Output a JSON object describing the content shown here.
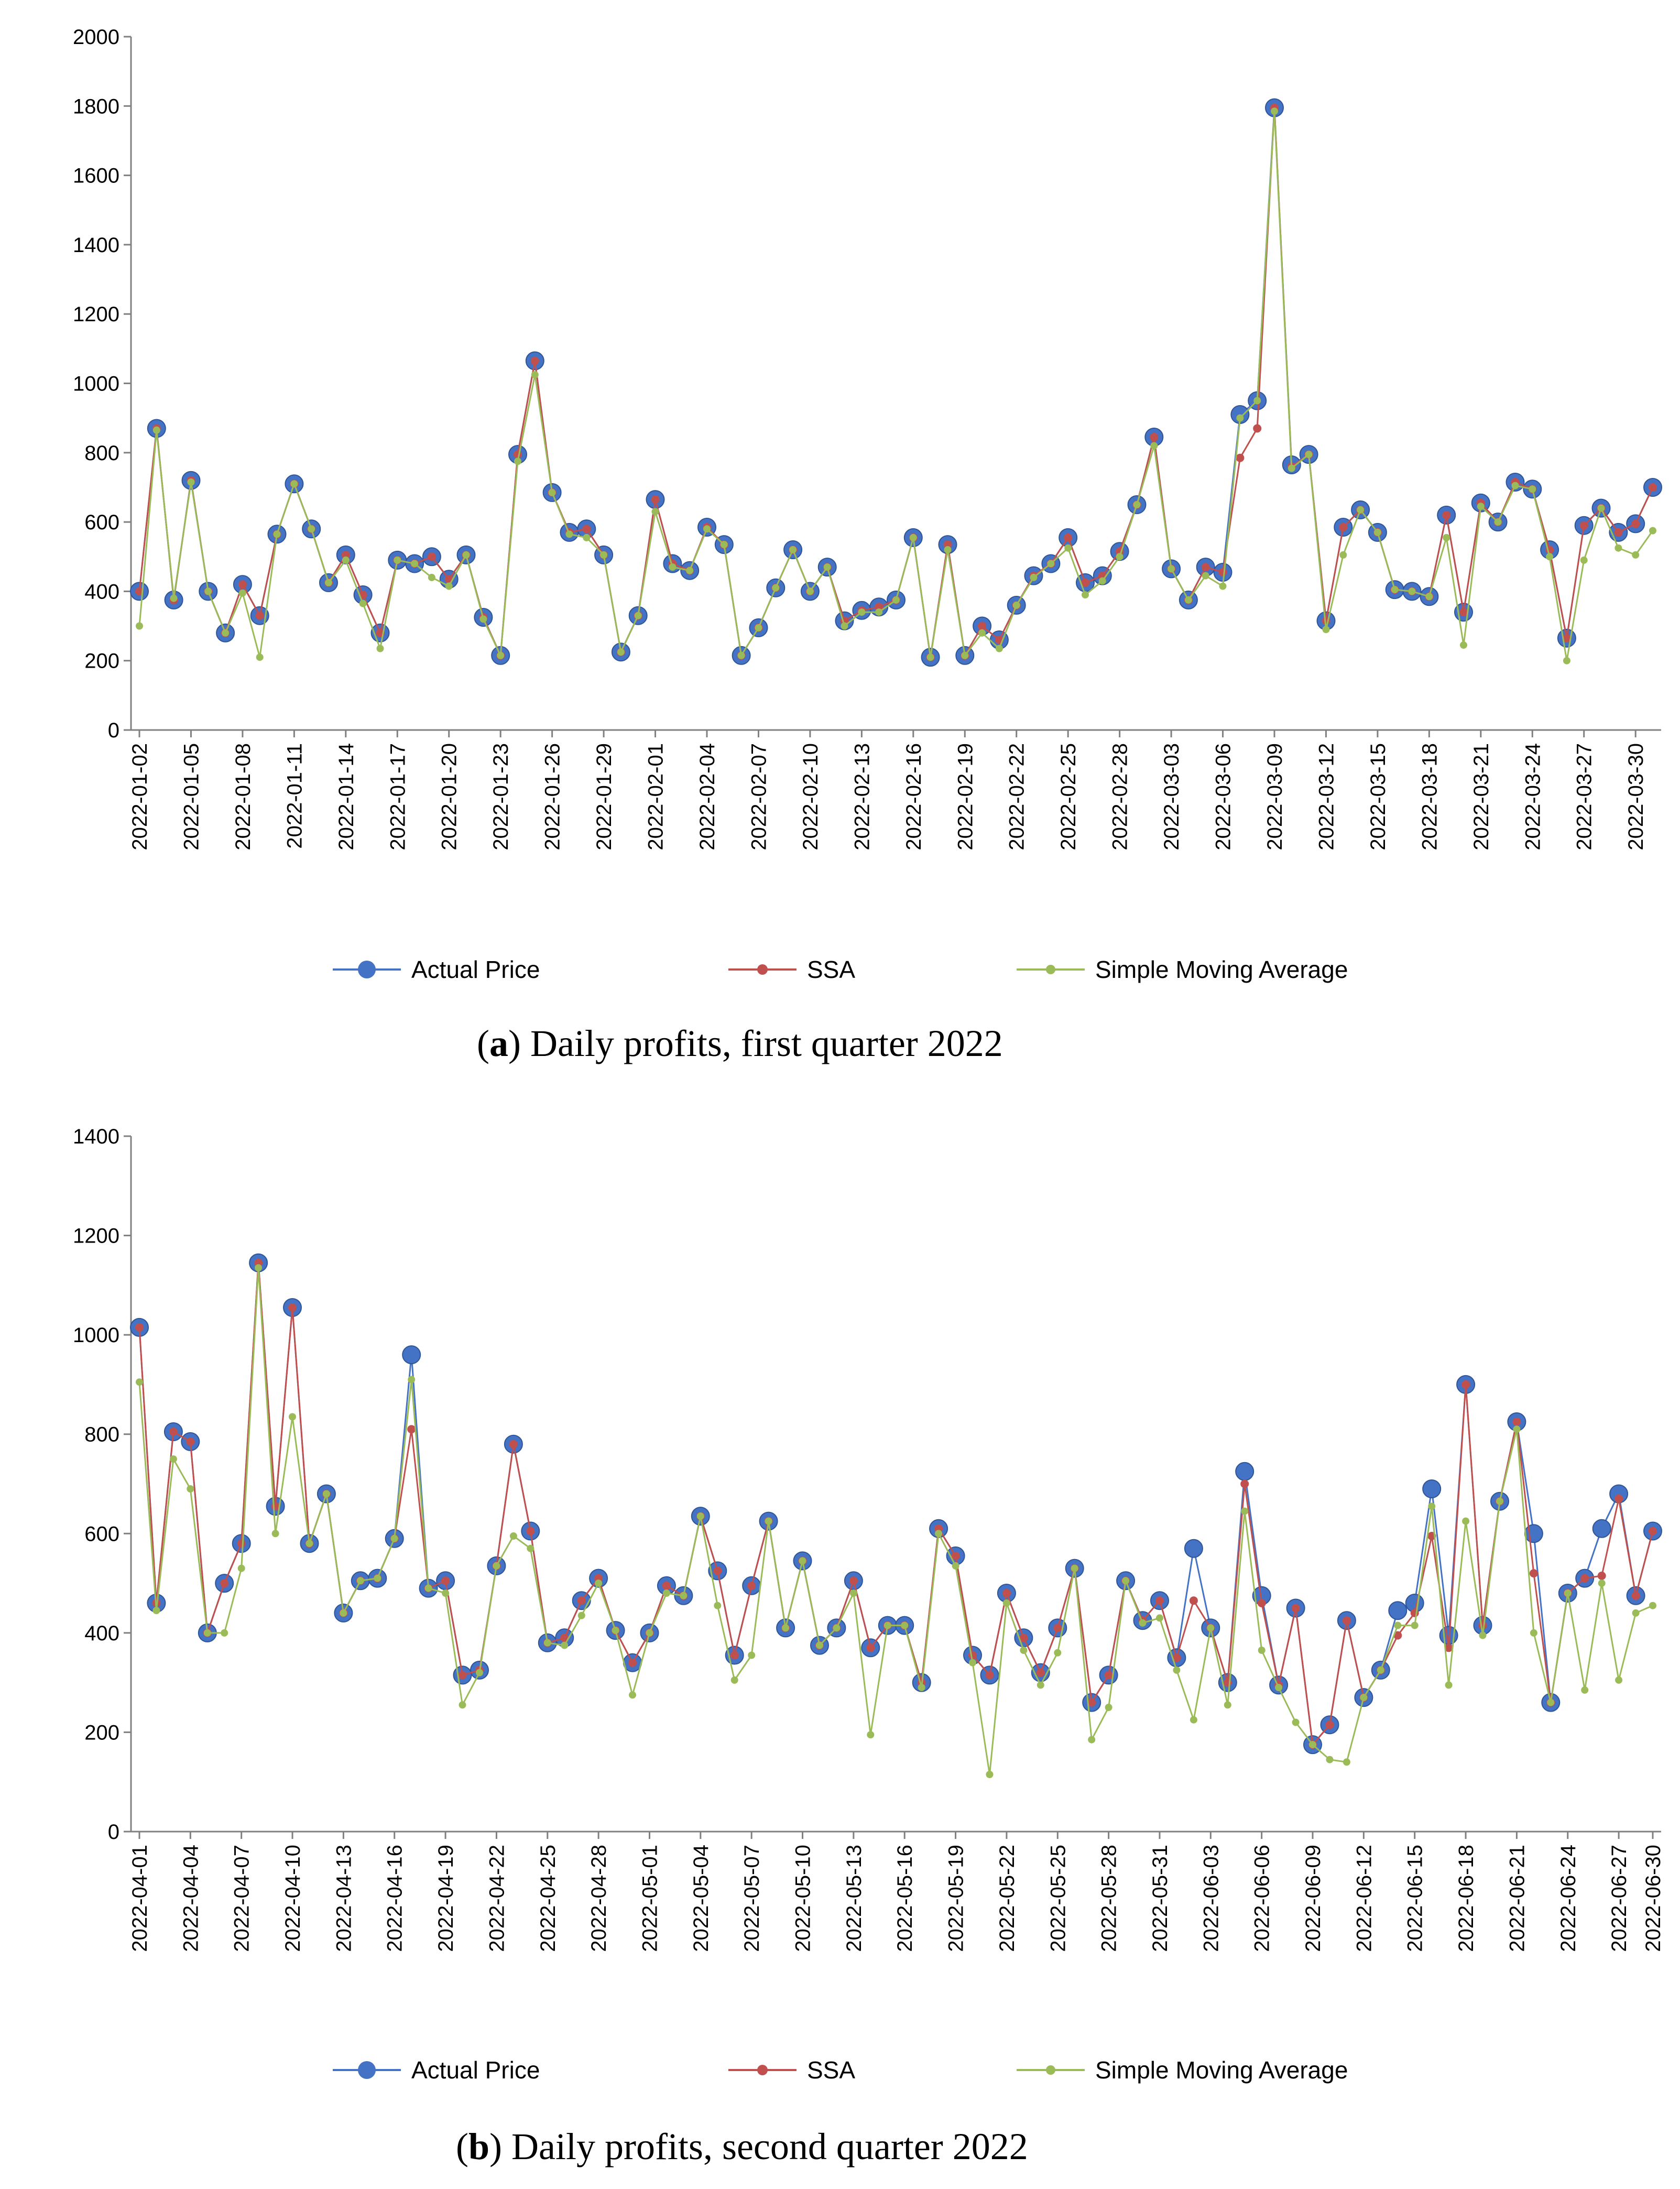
{
  "chart_data": [
    {
      "type": "line",
      "caption_prefix": "(",
      "caption_letter": "a",
      "caption_rest": ") Daily profits, first quarter 2022",
      "ylim": [
        0,
        2000
      ],
      "yticks": [
        "0",
        "200",
        "400",
        "600",
        "800",
        "1000",
        "1200",
        "1400",
        "1600",
        "1800",
        "2000"
      ],
      "ytick_values": [
        0,
        200,
        400,
        600,
        800,
        1000,
        1200,
        1400,
        1600,
        1800,
        2000
      ],
      "x_tick_labels": [
        "2022-01-02",
        "2022-01-05",
        "2022-01-08",
        "2022-01-11",
        "2022-01-14",
        "2022-01-17",
        "2022-01-20",
        "2022-01-23",
        "2022-01-26",
        "2022-01-29",
        "2022-02-01",
        "2022-02-04",
        "2022-02-07",
        "2022-02-10",
        "2022-02-13",
        "2022-02-16",
        "2022-02-19",
        "2022-02-22",
        "2022-02-25",
        "2022-02-28",
        "2022-03-03",
        "2022-03-06",
        "2022-03-09",
        "2022-03-12",
        "2022-03-15",
        "2022-03-18",
        "2022-03-21",
        "2022-03-24",
        "2022-03-27",
        "2022-03-30"
      ],
      "legend": [
        "Actual Price",
        "SSA",
        "Simple Moving Average"
      ],
      "series": [
        {
          "name": "Actual Price",
          "color": "#4472C4",
          "values": [
            400,
            870,
            375,
            720,
            400,
            280,
            420,
            330,
            565,
            710,
            580,
            425,
            505,
            390,
            280,
            490,
            480,
            500,
            435,
            505,
            325,
            215,
            795,
            1065,
            685,
            570,
            580,
            505,
            225,
            330,
            665,
            480,
            460,
            585,
            535,
            215,
            295,
            410,
            520,
            400,
            470,
            315,
            345,
            355,
            375,
            555,
            210,
            535,
            215,
            300,
            260,
            360,
            445,
            480,
            555,
            425,
            445,
            515,
            650,
            845,
            465,
            375,
            470,
            455,
            910,
            950,
            1795,
            765,
            795,
            315,
            585,
            635,
            570,
            405,
            400,
            385,
            620,
            340,
            655,
            600,
            715,
            695,
            520,
            265,
            590,
            640,
            570,
            595,
            700
          ]
        },
        {
          "name": "SSA",
          "color": "#C0504D",
          "values": [
            400,
            870,
            375,
            720,
            400,
            280,
            420,
            330,
            565,
            710,
            580,
            425,
            505,
            390,
            280,
            490,
            480,
            500,
            435,
            505,
            325,
            215,
            795,
            1065,
            685,
            570,
            580,
            505,
            225,
            330,
            665,
            480,
            460,
            585,
            535,
            215,
            295,
            410,
            520,
            400,
            470,
            315,
            345,
            355,
            375,
            555,
            210,
            535,
            215,
            300,
            260,
            360,
            445,
            480,
            555,
            425,
            445,
            515,
            650,
            845,
            465,
            375,
            470,
            455,
            785,
            870,
            1795,
            760,
            795,
            315,
            585,
            635,
            570,
            405,
            400,
            385,
            620,
            340,
            655,
            600,
            715,
            695,
            520,
            265,
            590,
            640,
            570,
            595,
            700
          ]
        },
        {
          "name": "Simple Moving Average",
          "color": "#9BBB59",
          "values": [
            300,
            865,
            380,
            715,
            400,
            280,
            395,
            210,
            565,
            710,
            580,
            425,
            490,
            365,
            235,
            490,
            480,
            440,
            415,
            505,
            320,
            215,
            775,
            1025,
            685,
            565,
            555,
            505,
            225,
            330,
            630,
            470,
            460,
            580,
            535,
            215,
            295,
            410,
            520,
            400,
            470,
            300,
            340,
            340,
            375,
            555,
            210,
            520,
            215,
            280,
            235,
            360,
            440,
            480,
            525,
            390,
            430,
            500,
            650,
            820,
            465,
            375,
            445,
            415,
            900,
            950,
            1785,
            755,
            795,
            290,
            505,
            635,
            570,
            405,
            400,
            385,
            555,
            245,
            645,
            600,
            705,
            695,
            500,
            200,
            490,
            640,
            525,
            505,
            575
          ]
        }
      ]
    },
    {
      "type": "line",
      "caption_prefix": "(",
      "caption_letter": "b",
      "caption_rest": ") Daily profits, second quarter 2022",
      "ylim": [
        0,
        1400
      ],
      "yticks": [
        "0",
        "200",
        "400",
        "600",
        "800",
        "1000",
        "1200",
        "1400"
      ],
      "ytick_values": [
        0,
        200,
        400,
        600,
        800,
        1000,
        1200,
        1400
      ],
      "x_tick_labels": [
        "2022-04-01",
        "2022-04-04",
        "2022-04-07",
        "2022-04-10",
        "2022-04-13",
        "2022-04-16",
        "2022-04-19",
        "2022-04-22",
        "2022-04-25",
        "2022-04-28",
        "2022-05-01",
        "2022-05-04",
        "2022-05-07",
        "2022-05-10",
        "2022-05-13",
        "2022-05-16",
        "2022-05-19",
        "2022-05-22",
        "2022-05-25",
        "2022-05-28",
        "2022-05-31",
        "2022-06-03",
        "2022-06-06",
        "2022-06-09",
        "2022-06-12",
        "2022-06-15",
        "2022-06-18",
        "2022-06-21",
        "2022-06-24",
        "2022-06-27",
        "2022-06-30"
      ],
      "legend": [
        "Actual Price",
        "SSA",
        "Simple Moving Average"
      ],
      "series": [
        {
          "name": "Actual Price",
          "color": "#4472C4",
          "values": [
            1015,
            460,
            805,
            785,
            400,
            500,
            580,
            1145,
            655,
            1055,
            580,
            680,
            440,
            505,
            510,
            590,
            960,
            490,
            505,
            315,
            325,
            535,
            780,
            605,
            380,
            390,
            465,
            510,
            405,
            340,
            400,
            495,
            475,
            635,
            525,
            355,
            495,
            625,
            410,
            545,
            375,
            410,
            505,
            370,
            415,
            415,
            300,
            610,
            555,
            355,
            315,
            480,
            390,
            320,
            410,
            530,
            260,
            315,
            505,
            425,
            465,
            350,
            570,
            410,
            300,
            725,
            475,
            295,
            450,
            175,
            215,
            425,
            270,
            325,
            445,
            460,
            690,
            395,
            900,
            415,
            665,
            825,
            600,
            260,
            480,
            510,
            610,
            680,
            475,
            605
          ]
        },
        {
          "name": "SSA",
          "color": "#C0504D",
          "values": [
            1015,
            460,
            805,
            785,
            400,
            500,
            580,
            1145,
            655,
            1055,
            580,
            680,
            440,
            505,
            510,
            590,
            810,
            490,
            505,
            315,
            325,
            535,
            780,
            605,
            380,
            390,
            465,
            510,
            405,
            340,
            400,
            495,
            475,
            635,
            525,
            355,
            495,
            625,
            410,
            545,
            375,
            410,
            505,
            370,
            415,
            415,
            300,
            610,
            555,
            355,
            315,
            480,
            390,
            320,
            410,
            530,
            260,
            315,
            505,
            425,
            465,
            350,
            465,
            410,
            300,
            700,
            460,
            295,
            450,
            175,
            215,
            425,
            270,
            325,
            395,
            440,
            595,
            370,
            900,
            415,
            665,
            825,
            520,
            260,
            480,
            510,
            515,
            670,
            475,
            605
          ]
        },
        {
          "name": "Simple Moving Average",
          "color": "#9BBB59",
          "values": [
            905,
            445,
            750,
            690,
            400,
            400,
            530,
            1135,
            600,
            835,
            580,
            680,
            440,
            505,
            510,
            590,
            910,
            490,
            480,
            255,
            320,
            535,
            595,
            570,
            380,
            375,
            435,
            500,
            405,
            275,
            400,
            480,
            475,
            635,
            455,
            305,
            355,
            625,
            410,
            545,
            375,
            410,
            480,
            195,
            415,
            415,
            290,
            600,
            535,
            340,
            115,
            460,
            365,
            295,
            360,
            530,
            185,
            250,
            505,
            420,
            430,
            325,
            225,
            410,
            255,
            645,
            365,
            290,
            220,
            175,
            145,
            140,
            270,
            325,
            415,
            415,
            655,
            295,
            625,
            395,
            665,
            810,
            400,
            260,
            480,
            285,
            500,
            305,
            440,
            455
          ]
        }
      ]
    }
  ]
}
